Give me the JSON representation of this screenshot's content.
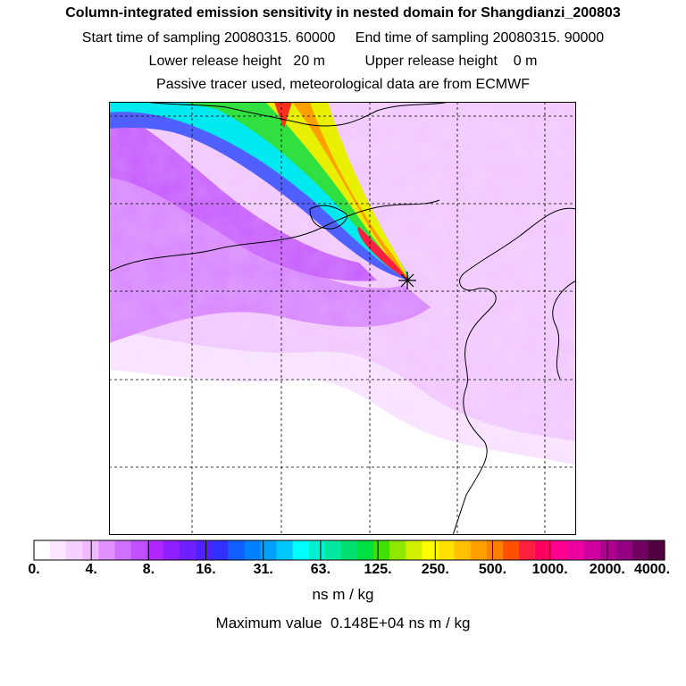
{
  "header": {
    "title": "Column-integrated emission sensitivity in nested domain for Shangdianzi_200803",
    "line_time": "Start time of sampling 20080315. 60000     End time of sampling 20080315. 90000",
    "line_height": "Lower release height   20 m          Upper release height    0 m",
    "line_info": "Passive tracer used, meteorological data are from ECMWF"
  },
  "colorbar": {
    "tick_labels": [
      "0.",
      "4.",
      "8.",
      "16.",
      "31.",
      "63.",
      "125.",
      "250.",
      "500.",
      "1000.",
      "2000.",
      "4000."
    ],
    "colors": [
      "#ffffff",
      "#fbe6ff",
      "#f6d0ff",
      "#f0b8ff",
      "#e090ff",
      "#d070ff",
      "#c050ff",
      "#b028ff",
      "#9020ff",
      "#7020ff",
      "#5020ff",
      "#3030ff",
      "#1060ff",
      "#0080ff",
      "#00a0ff",
      "#00c8ff",
      "#00ffff",
      "#00f0d0",
      "#00e8a0",
      "#00e070",
      "#00e040",
      "#40e000",
      "#90e800",
      "#d0f000",
      "#ffff00",
      "#ffe000",
      "#ffc000",
      "#ffa000",
      "#ff8000",
      "#ff5000",
      "#ff2040",
      "#ff0060",
      "#ff0090",
      "#f000a0",
      "#d000a0",
      "#b00090",
      "#900080",
      "#700060",
      "#500040"
    ],
    "units": "ns m / kg"
  },
  "map": {
    "receptor": "Shangdianzi",
    "max_value_text": "Maximum value  0.148E+04 ns m / kg"
  }
}
